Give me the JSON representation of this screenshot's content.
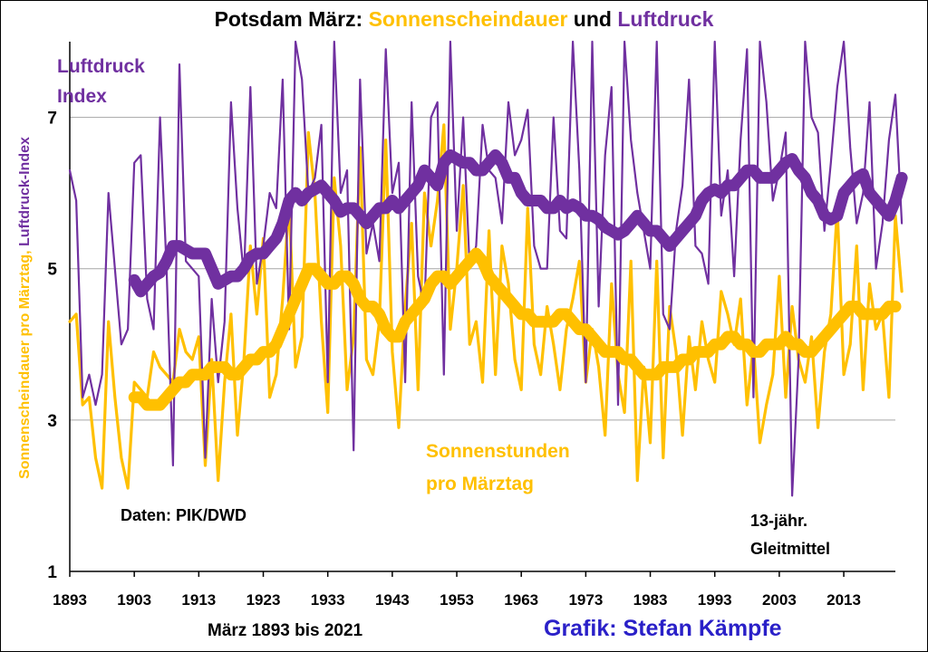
{
  "chart_data": {
    "type": "line",
    "title": {
      "prefix": "Potsdam März: ",
      "sun_word": "Sonnenscheindauer",
      "mid": " und ",
      "pressure_word": "Luftdruck"
    },
    "ylabel": {
      "sun_part": "Sonnenscheindauer pro Märztag, ",
      "pressure_part": "Luftdruck-Index"
    },
    "xlabel": "März 1893 bis 2021",
    "ylim": [
      1,
      8
    ],
    "yticks": [
      1,
      3,
      5,
      7
    ],
    "xlim": [
      1893,
      2021
    ],
    "xticks": [
      1893,
      1903,
      1913,
      1923,
      1933,
      1943,
      1953,
      1963,
      1973,
      1983,
      1993,
      2003,
      2013
    ],
    "grid": true,
    "colors": {
      "sunshine": "#FFC000",
      "pressure": "#7030A0",
      "credit": "#2A20C8",
      "grid": "#A6A6A6",
      "axis": "#000000"
    },
    "annotations": {
      "pressure_label": [
        "Luftdruck",
        "Index"
      ],
      "sunshine_label": [
        "Sonnenstunden",
        "pro Märztag"
      ],
      "source": "Daten: PIK/DWD",
      "moving_avg": [
        "13-jähr.",
        "Gleitmittel"
      ],
      "credit": "Grafik: Stefan Kämpfe"
    },
    "series": [
      {
        "name": "Sonnenstunden pro Märztag",
        "role": "sunshine",
        "x_start": 1893,
        "values": [
          4.3,
          4.4,
          3.2,
          3.3,
          2.5,
          2.1,
          4.3,
          3.3,
          2.5,
          2.1,
          3.5,
          3.4,
          3.3,
          3.9,
          3.7,
          3.6,
          3.5,
          4.2,
          3.9,
          3.8,
          4.1,
          2.4,
          3.8,
          2.2,
          3.5,
          4.4,
          2.8,
          3.8,
          5.3,
          4.4,
          5.4,
          3.3,
          3.6,
          4.6,
          5.9,
          3.7,
          4.1,
          6.8,
          6.0,
          4.3,
          3.1,
          6.2,
          5.3,
          3.4,
          4.1,
          6.6,
          3.8,
          3.6,
          4.3,
          6.7,
          3.9,
          2.9,
          4.5,
          5.6,
          3.4,
          6.0,
          5.3,
          5.9,
          6.9,
          4.2,
          5.0,
          6.1,
          4.0,
          4.3,
          3.5,
          5.5,
          3.6,
          5.3,
          4.8,
          3.8,
          3.4,
          5.8,
          4.0,
          3.6,
          4.5,
          4.0,
          3.4,
          4.2,
          4.6,
          5.1,
          3.5,
          4.2,
          3.7,
          2.8,
          4.8,
          3.6,
          3.1,
          5.1,
          2.2,
          3.7,
          2.7,
          5.1,
          2.5,
          4.5,
          3.9,
          2.8,
          4.1,
          3.4,
          4.3,
          3.8,
          3.5,
          4.7,
          4.4,
          4.0,
          4.6,
          3.2,
          4.0,
          2.7,
          3.2,
          3.6,
          4.9,
          3.3,
          4.5,
          3.8,
          3.5,
          4.1,
          2.9,
          3.9,
          4.4,
          5.8,
          3.6,
          4.0,
          5.3,
          3.4,
          4.8,
          4.2,
          4.4,
          3.3,
          5.7,
          4.7
        ]
      },
      {
        "name": "Luftdruck Index",
        "role": "pressure",
        "x_start": 1893,
        "values": [
          6.3,
          5.9,
          3.3,
          3.6,
          3.2,
          3.6,
          6.0,
          5.0,
          4.0,
          4.2,
          6.4,
          6.5,
          4.6,
          4.2,
          7.0,
          5.0,
          2.4,
          7.7,
          5.1,
          5.0,
          4.9,
          2.5,
          4.6,
          3.5,
          4.3,
          7.2,
          5.8,
          4.9,
          7.4,
          4.8,
          5.3,
          6.0,
          5.8,
          7.5,
          4.2,
          8.0,
          7.5,
          6.0,
          6.2,
          6.9,
          3.5,
          8.0,
          6.0,
          6.3,
          2.6,
          7.5,
          5.2,
          5.6,
          5.1,
          7.9,
          6.0,
          6.4,
          3.5,
          7.2,
          4.9,
          4.5,
          7.0,
          7.2,
          3.6,
          8.0,
          5.5,
          7.0,
          5.0,
          5.3,
          6.9,
          6.3,
          6.2,
          5.6,
          7.2,
          6.5,
          6.7,
          7.1,
          5.3,
          5.0,
          5.0,
          7.0,
          5.5,
          5.4,
          8.0,
          6.3,
          3.5,
          8.0,
          4.5,
          6.5,
          7.4,
          3.2,
          8.0,
          6.7,
          6.0,
          5.5,
          5.0,
          8.0,
          4.4,
          4.2,
          5.5,
          6.1,
          7.5,
          5.3,
          5.2,
          4.8,
          8.0,
          5.7,
          6.3,
          4.9,
          6.7,
          7.9,
          3.3,
          8.0,
          7.2,
          5.9,
          6.3,
          6.8,
          2.0,
          3.8,
          8.0,
          7.0,
          6.8,
          5.5,
          6.4,
          7.4,
          8.0,
          6.6,
          5.6,
          6.0,
          7.2,
          5.0,
          5.6,
          6.7,
          7.3,
          5.6
        ]
      },
      {
        "name": "13-jähr. Gleitmittel Sonnenstunden",
        "role": "sunshine-avg",
        "x_start": 1903,
        "values": [
          3.3,
          3.3,
          3.2,
          3.2,
          3.2,
          3.3,
          3.4,
          3.5,
          3.5,
          3.6,
          3.6,
          3.6,
          3.7,
          3.7,
          3.7,
          3.6,
          3.6,
          3.7,
          3.8,
          3.8,
          3.9,
          3.9,
          4.0,
          4.2,
          4.4,
          4.6,
          4.8,
          5.0,
          5.0,
          4.9,
          4.8,
          4.8,
          4.9,
          4.9,
          4.8,
          4.6,
          4.5,
          4.5,
          4.4,
          4.2,
          4.1,
          4.1,
          4.3,
          4.4,
          4.5,
          4.6,
          4.8,
          4.9,
          4.9,
          4.8,
          4.9,
          5.0,
          5.1,
          5.2,
          5.1,
          4.9,
          4.8,
          4.7,
          4.6,
          4.5,
          4.4,
          4.4,
          4.3,
          4.3,
          4.3,
          4.3,
          4.4,
          4.4,
          4.3,
          4.2,
          4.2,
          4.1,
          4.0,
          3.9,
          3.9,
          3.9,
          3.8,
          3.8,
          3.7,
          3.6,
          3.6,
          3.6,
          3.7,
          3.7,
          3.7,
          3.8,
          3.8,
          3.9,
          3.9,
          3.9,
          4.0,
          4.0,
          4.1,
          4.1,
          4.0,
          4.0,
          3.9,
          3.9,
          4.0,
          4.0,
          4.0,
          4.1,
          4.0,
          4.0,
          3.9,
          3.9,
          4.0,
          4.1,
          4.2,
          4.3,
          4.4,
          4.5,
          4.5,
          4.4,
          4.4,
          4.4,
          4.4,
          4.5,
          4.5
        ]
      },
      {
        "name": "13-jähr. Gleitmittel Luftdruck",
        "role": "pressure-avg",
        "x_start": 1903,
        "values": [
          4.85,
          4.7,
          4.8,
          4.9,
          4.95,
          5.1,
          5.3,
          5.3,
          5.25,
          5.2,
          5.2,
          5.2,
          5.0,
          4.8,
          4.85,
          4.9,
          4.9,
          5.0,
          5.15,
          5.2,
          5.2,
          5.3,
          5.4,
          5.6,
          5.9,
          6.0,
          5.9,
          6.0,
          6.05,
          6.1,
          6.0,
          5.9,
          5.75,
          5.8,
          5.8,
          5.7,
          5.6,
          5.7,
          5.8,
          5.8,
          5.9,
          5.8,
          5.9,
          6.0,
          6.1,
          6.3,
          6.2,
          6.1,
          6.4,
          6.5,
          6.45,
          6.4,
          6.4,
          6.3,
          6.3,
          6.4,
          6.5,
          6.4,
          6.2,
          6.2,
          6.0,
          5.9,
          5.9,
          5.9,
          5.8,
          5.8,
          5.9,
          5.8,
          5.85,
          5.8,
          5.7,
          5.7,
          5.65,
          5.55,
          5.5,
          5.45,
          5.5,
          5.6,
          5.7,
          5.6,
          5.5,
          5.5,
          5.4,
          5.3,
          5.4,
          5.5,
          5.6,
          5.7,
          5.9,
          6.0,
          6.05,
          6.0,
          6.1,
          6.1,
          6.2,
          6.3,
          6.3,
          6.2,
          6.2,
          6.2,
          6.3,
          6.4,
          6.45,
          6.3,
          6.2,
          6.0,
          5.9,
          5.7,
          5.65,
          5.7,
          6.0,
          6.1,
          6.2,
          6.25,
          6.0,
          5.9,
          5.8,
          5.7,
          5.9,
          6.2
        ]
      }
    ]
  }
}
